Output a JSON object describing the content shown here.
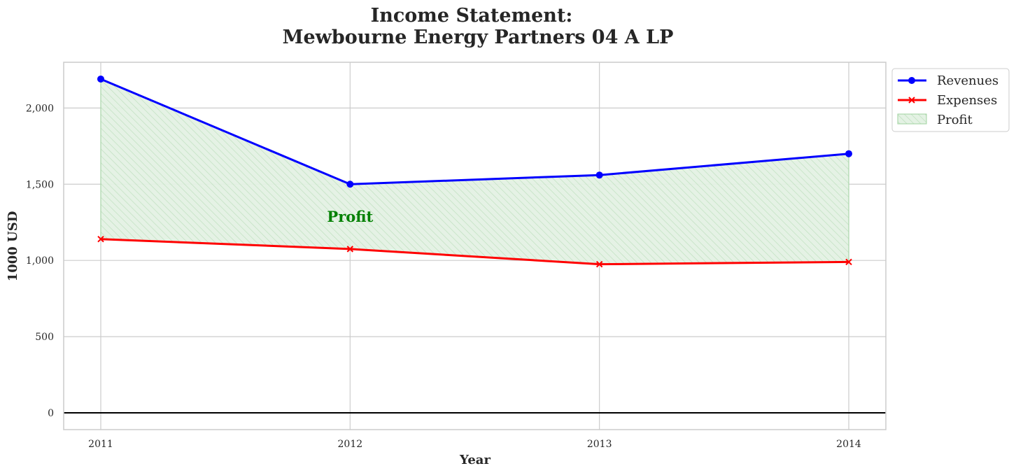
{
  "chart_data": {
    "type": "line",
    "title": [
      "Income Statement:",
      "Mewbourne Energy Partners 04 A LP"
    ],
    "xlabel": "Year",
    "ylabel": "1000 USD",
    "x": [
      "2011",
      "2012",
      "2013",
      "2014"
    ],
    "ylim": [
      -110,
      2300
    ],
    "yticks": [
      0,
      500,
      1000,
      1500,
      2000
    ],
    "ytick_labels": [
      "0",
      "500",
      "1,000",
      "1,500",
      "2,000"
    ],
    "grid": true,
    "legend_position": "outside-top-right",
    "series": [
      {
        "name": "Revenues",
        "values": [
          2190,
          1500,
          1560,
          1700
        ],
        "color": "#0000ff",
        "marker": "circle"
      },
      {
        "name": "Expenses",
        "values": [
          1140,
          1075,
          975,
          990
        ],
        "color": "#ff0000",
        "marker": "x"
      }
    ],
    "fill": {
      "name": "Profit",
      "between": [
        "Revenues",
        "Expenses"
      ],
      "color": "#2ca02c",
      "hatch": "diagonal"
    },
    "annotations": [
      {
        "text": "Profit",
        "x": "2012",
        "y": 1290,
        "color": "#008000"
      }
    ]
  }
}
